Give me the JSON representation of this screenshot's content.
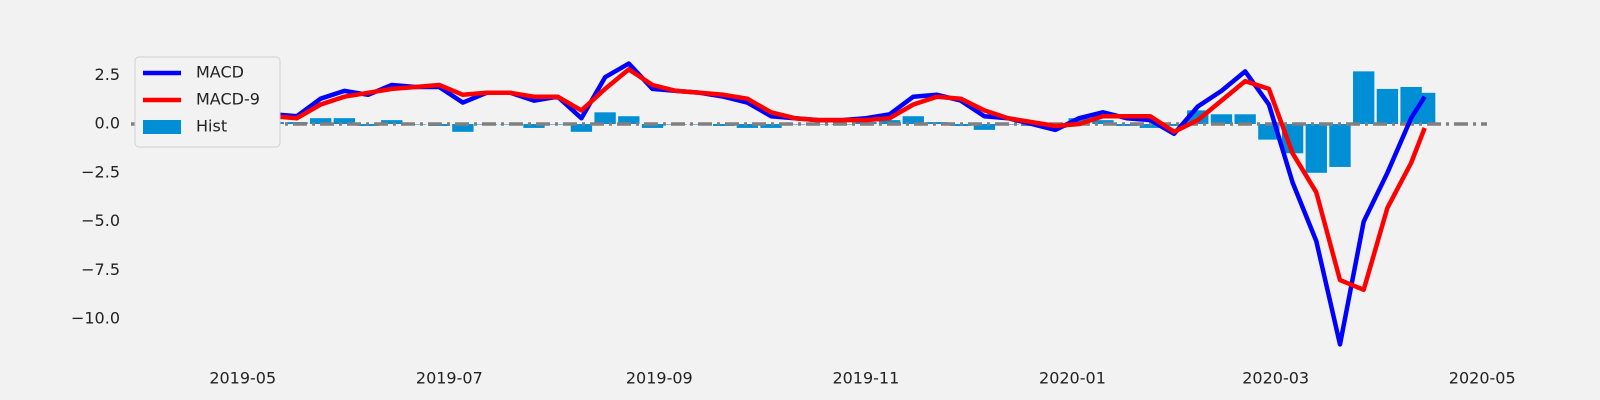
{
  "chart_data": {
    "type": "macd",
    "x": [
      "2019-04-05",
      "2019-04-12",
      "2019-04-19",
      "2019-04-26",
      "2019-05-03",
      "2019-05-10",
      "2019-05-17",
      "2019-05-24",
      "2019-05-31",
      "2019-06-07",
      "2019-06-14",
      "2019-06-21",
      "2019-06-28",
      "2019-07-05",
      "2019-07-12",
      "2019-07-19",
      "2019-07-26",
      "2019-08-02",
      "2019-08-09",
      "2019-08-16",
      "2019-08-23",
      "2019-08-30",
      "2019-09-06",
      "2019-09-13",
      "2019-09-20",
      "2019-09-27",
      "2019-10-04",
      "2019-10-11",
      "2019-10-18",
      "2019-10-25",
      "2019-11-01",
      "2019-11-08",
      "2019-11-15",
      "2019-11-22",
      "2019-11-29",
      "2019-12-06",
      "2019-12-13",
      "2019-12-20",
      "2019-12-27",
      "2020-01-03",
      "2020-01-10",
      "2020-01-17",
      "2020-01-24",
      "2020-01-31",
      "2020-02-07",
      "2020-02-14",
      "2020-02-21",
      "2020-02-28",
      "2020-03-06",
      "2020-03-13",
      "2020-03-20",
      "2020-03-27",
      "2020-04-03",
      "2020-04-10",
      "2020-04-14"
    ],
    "series": [
      {
        "name": "MACD",
        "kind": "line",
        "color": "#0000ff",
        "values": [
          -0.3,
          -0.5,
          -0.3,
          0.1,
          0.6,
          0.5,
          0.4,
          1.3,
          1.7,
          1.5,
          2.0,
          1.9,
          1.9,
          1.1,
          1.6,
          1.6,
          1.2,
          1.4,
          0.3,
          2.4,
          3.1,
          1.8,
          1.7,
          1.6,
          1.4,
          1.1,
          0.4,
          0.3,
          0.2,
          0.2,
          0.3,
          0.5,
          1.4,
          1.5,
          1.2,
          0.4,
          0.3,
          0.0,
          -0.3,
          0.3,
          0.6,
          0.3,
          0.2,
          -0.5,
          0.9,
          1.7,
          2.7,
          1.0,
          -3.0,
          -6.0,
          -11.3,
          -5.0,
          -2.5,
          0.3,
          1.4
        ]
      },
      {
        "name": "MACD-9",
        "kind": "line",
        "color": "#ff0000",
        "values": [
          -0.2,
          -0.4,
          -0.3,
          0.0,
          0.3,
          0.4,
          0.3,
          1.0,
          1.4,
          1.6,
          1.8,
          1.9,
          2.0,
          1.5,
          1.6,
          1.6,
          1.4,
          1.4,
          0.7,
          1.8,
          2.8,
          2.0,
          1.7,
          1.6,
          1.5,
          1.3,
          0.6,
          0.3,
          0.2,
          0.2,
          0.2,
          0.3,
          1.0,
          1.4,
          1.3,
          0.7,
          0.3,
          0.1,
          -0.1,
          0.0,
          0.4,
          0.4,
          0.4,
          -0.4,
          0.2,
          1.2,
          2.2,
          1.8,
          -1.5,
          -3.5,
          -8.0,
          -8.5,
          -4.3,
          -2.0,
          -0.2
        ]
      },
      {
        "name": "Hist",
        "kind": "bar",
        "color": "#008fd5",
        "values": [
          -0.1,
          -0.1,
          0,
          0.1,
          0.3,
          0.1,
          0.1,
          0.3,
          0.3,
          -0.1,
          0.2,
          0,
          -0.1,
          -0.4,
          0,
          0,
          -0.2,
          0,
          -0.4,
          0.6,
          0.4,
          -0.2,
          0,
          0,
          -0.1,
          -0.2,
          -0.2,
          0,
          0,
          0,
          0.1,
          0.2,
          0.4,
          0.1,
          -0.1,
          -0.3,
          0,
          -0.1,
          -0.2,
          0.3,
          0.2,
          -0.1,
          -0.2,
          -0.1,
          0.7,
          0.5,
          0.5,
          -0.8,
          -1.5,
          -2.5,
          -2.2,
          2.7,
          1.8,
          1.9,
          1.6
        ]
      }
    ],
    "reference_line": {
      "value": 0,
      "color": "#808080"
    },
    "xlim": [
      "2019-03-29",
      "2020-05-03"
    ],
    "xticks": [
      {
        "value": "2019-05-01",
        "label": "2019-05"
      },
      {
        "value": "2019-07-01",
        "label": "2019-07"
      },
      {
        "value": "2019-09-01",
        "label": "2019-09"
      },
      {
        "value": "2019-11-01",
        "label": "2019-11"
      },
      {
        "value": "2020-01-01",
        "label": "2020-01"
      },
      {
        "value": "2020-03-01",
        "label": "2020-03"
      },
      {
        "value": "2020-05-01",
        "label": "2020-05"
      }
    ],
    "ylim": [
      -12.2,
      4.8
    ],
    "yticks": [
      2.5,
      {
        "value": 0,
        "label": "0.0"
      },
      {
        "value": -2.5,
        "label": "−2.5"
      },
      {
        "value": -5,
        "label": "−5.0"
      },
      {
        "value": -7.5,
        "label": "−7.5"
      },
      {
        "value": -10,
        "label": "−10.0"
      }
    ],
    "legend": "upper left"
  }
}
